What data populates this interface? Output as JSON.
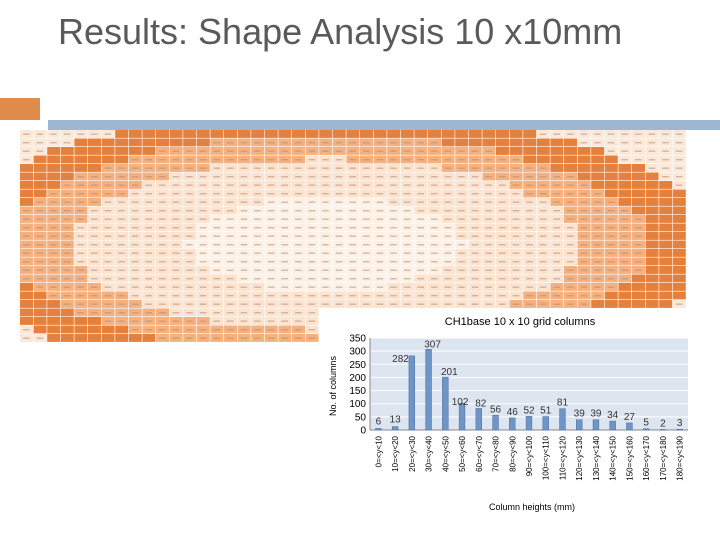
{
  "slide": {
    "title": "Results: Shape Analysis 10 x10mm"
  },
  "colors": {
    "accent_orange": "#e08a4c",
    "rule_blue": "#9bb7d4",
    "heat_high": "#e8803a",
    "heat_mid": "#f4b17f",
    "heat_low": "#fbe3cf",
    "bar_fill": "#6f95c7",
    "plot_bg": "#dde5f0"
  },
  "chart_data": {
    "type": "bar",
    "title": "CH1base 10 x 10 grid columns",
    "xlabel": "Column heights (mm)",
    "ylabel": "No. of columns",
    "categories": [
      "0=<y<10",
      "10=<y<20",
      "20=<y<30",
      "30=<y<40",
      "40=<y<50",
      "50=<y<60",
      "60=<y<70",
      "70=<y<80",
      "80=<y<90",
      "90=<y<100",
      "100=<y<110",
      "110=<y<120",
      "120=<y<130",
      "130=<y<140",
      "140=<y<150",
      "150=<y<160",
      "160=<y<170",
      "170=<y<180",
      "180=<y<190"
    ],
    "values": [
      6,
      13,
      282,
      307,
      201,
      102,
      82,
      56,
      46,
      52,
      51,
      81,
      39,
      39,
      34,
      27,
      5,
      2,
      3
    ],
    "ylim": [
      0,
      350
    ],
    "yticks": [
      0,
      50,
      100,
      150,
      200,
      250,
      300,
      350
    ],
    "grid": true,
    "legend": "none"
  }
}
